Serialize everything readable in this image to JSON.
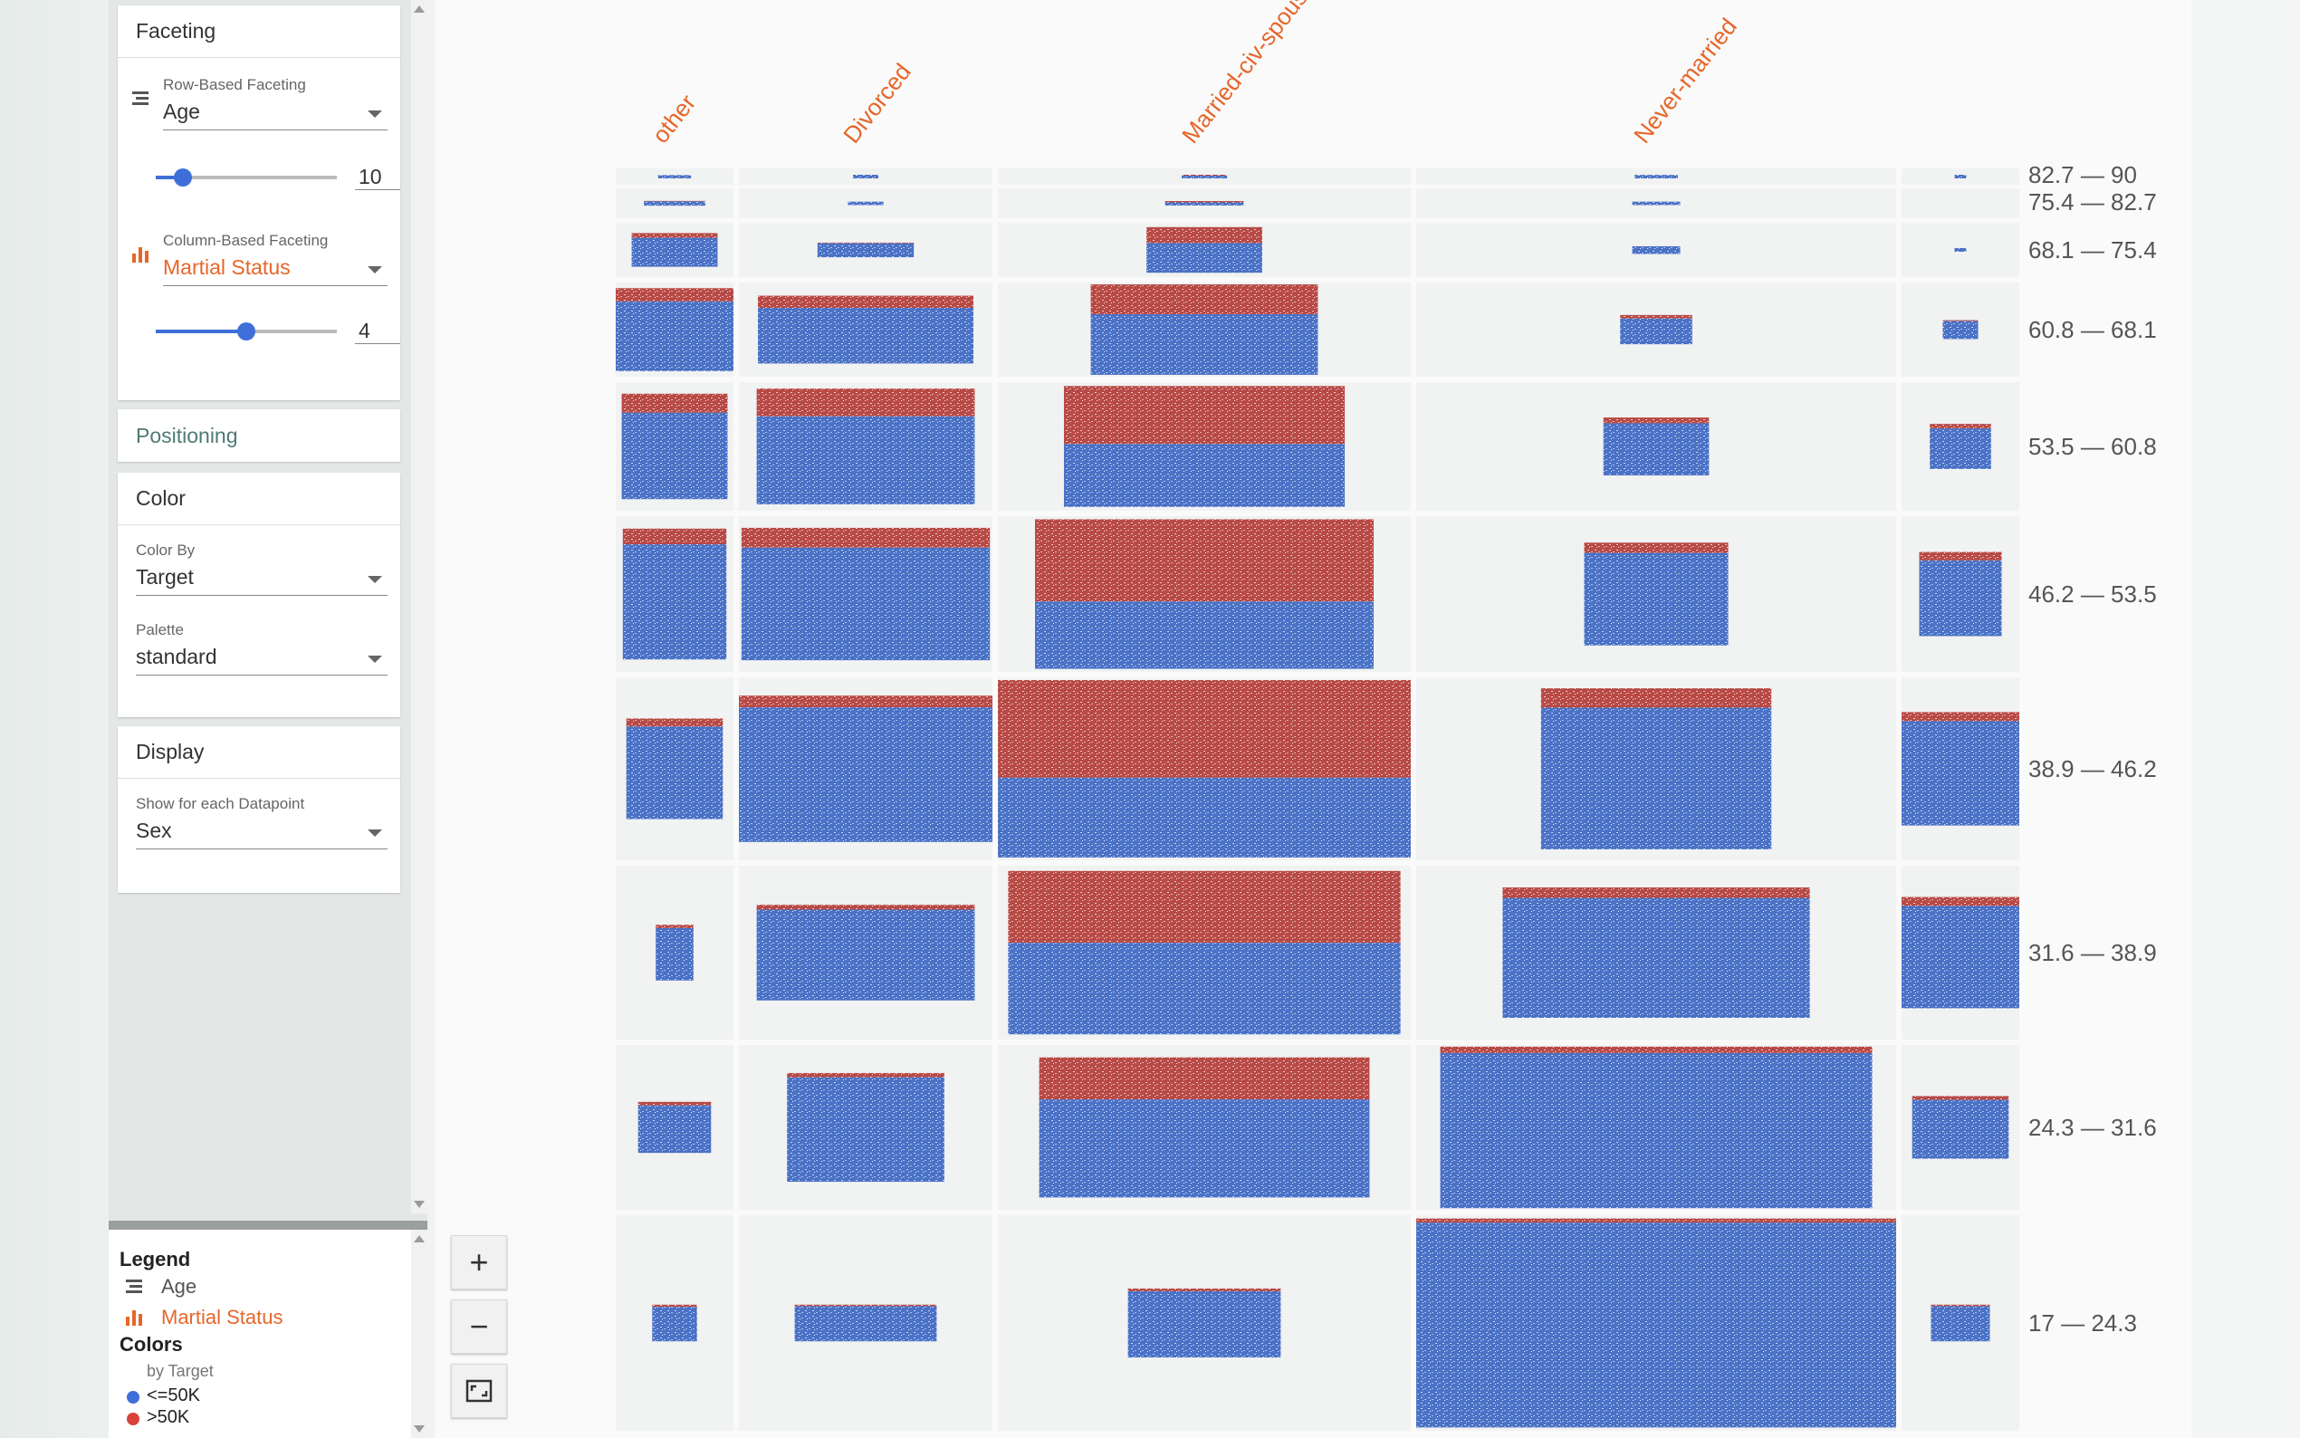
{
  "sidebar": {
    "faceting": {
      "title": "Faceting",
      "row": {
        "label": "Row-Based Faceting",
        "value": "Age",
        "bins": "10",
        "bins_fraction": 0.15
      },
      "column": {
        "label": "Column-Based Faceting",
        "value": "Martial Status",
        "bins": "4",
        "bins_fraction": 0.5
      }
    },
    "positioning": {
      "title": "Positioning"
    },
    "color": {
      "title": "Color",
      "color_by": {
        "label": "Color By",
        "value": "Target"
      },
      "palette": {
        "label": "Palette",
        "value": "standard"
      }
    },
    "display": {
      "title": "Display",
      "show": {
        "label": "Show for each Datapoint",
        "value": "Sex"
      }
    }
  },
  "legend": {
    "title": "Legend",
    "row_field": "Age",
    "column_field": "Martial Status",
    "colors_title": "Colors",
    "colors_by": "by Target",
    "items": [
      {
        "label": "<=50K",
        "color": "#3e6fd9"
      },
      {
        "label": ">50K",
        "color": "#d8433a"
      }
    ]
  },
  "zoom": {
    "in": "+",
    "out": "−"
  },
  "colors": {
    "blue": "#4a72c6",
    "red": "#b84a46",
    "accent": "#e6662a"
  },
  "chart_data": {
    "type": "facet-grid",
    "x_label": "Martial Status",
    "y_label": "Age",
    "columns": [
      "other",
      "Divorced",
      "Married-civ-spouse",
      "Never-married",
      ""
    ],
    "rows": [
      "82.7 — 90",
      "75.4 — 82.7",
      "68.1 — 75.4",
      "60.8 — 68.1",
      "53.5 — 60.8",
      "46.2 — 53.5",
      "38.9 — 46.2",
      "31.6 — 38.9",
      "24.3 — 31.6",
      "17 — 24.3"
    ],
    "cells_estimated": [
      [
        [
          0.28,
          0.1,
          0.1
        ],
        [
          0.1,
          0.02,
          0.0
        ],
        [
          0.11,
          0.07,
          0.25
        ],
        [
          0.09,
          0.08,
          0.05
        ],
        [
          0.1,
          0.01,
          0.0
        ]
      ],
      [
        [
          0.52,
          0.16,
          0.1
        ],
        [
          0.14,
          0.1,
          0.05
        ],
        [
          0.19,
          0.15,
          0.3
        ],
        [
          0.1,
          0.07,
          0.05
        ],
        [
          0.0,
          0.0,
          0.0
        ]
      ],
      [
        [
          0.73,
          0.62,
          0.14
        ],
        [
          0.38,
          0.27,
          0.05
        ],
        [
          0.28,
          0.84,
          0.35
        ],
        [
          0.1,
          0.15,
          0.05
        ],
        [
          0.1,
          0.05,
          0.0
        ]
      ],
      [
        [
          1.0,
          0.88,
          0.16
        ],
        [
          0.85,
          0.72,
          0.18
        ],
        [
          0.55,
          0.96,
          0.33
        ],
        [
          0.15,
          0.31,
          0.12
        ],
        [
          0.3,
          0.2,
          0.05
        ]
      ],
      [
        [
          0.9,
          0.82,
          0.18
        ],
        [
          0.86,
          0.9,
          0.24
        ],
        [
          0.68,
          0.94,
          0.48
        ],
        [
          0.22,
          0.45,
          0.1
        ],
        [
          0.52,
          0.35,
          0.1
        ]
      ],
      [
        [
          0.88,
          0.84,
          0.12
        ],
        [
          0.98,
          0.85,
          0.15
        ],
        [
          0.82,
          0.96,
          0.55
        ],
        [
          0.3,
          0.66,
          0.1
        ],
        [
          0.7,
          0.54,
          0.1
        ]
      ],
      [
        [
          0.82,
          0.55,
          0.08
        ],
        [
          1.0,
          0.8,
          0.08
        ],
        [
          1.0,
          0.97,
          0.55
        ],
        [
          0.48,
          0.88,
          0.12
        ],
        [
          1.0,
          0.62,
          0.08
        ]
      ],
      [
        [
          0.32,
          0.32,
          0.06
        ],
        [
          0.86,
          0.55,
          0.05
        ],
        [
          0.95,
          0.94,
          0.44
        ],
        [
          0.64,
          0.75,
          0.08
        ],
        [
          1.0,
          0.64,
          0.08
        ]
      ],
      [
        [
          0.62,
          0.31,
          0.07
        ],
        [
          0.62,
          0.66,
          0.04
        ],
        [
          0.8,
          0.85,
          0.3
        ],
        [
          0.9,
          0.98,
          0.04
        ],
        [
          0.82,
          0.38,
          0.06
        ]
      ],
      [
        [
          0.38,
          0.17,
          0.06
        ],
        [
          0.56,
          0.17,
          0.04
        ],
        [
          0.37,
          0.32,
          0.04
        ],
        [
          1.0,
          0.97,
          0.02
        ],
        [
          0.5,
          0.17,
          0.04
        ]
      ]
    ]
  }
}
